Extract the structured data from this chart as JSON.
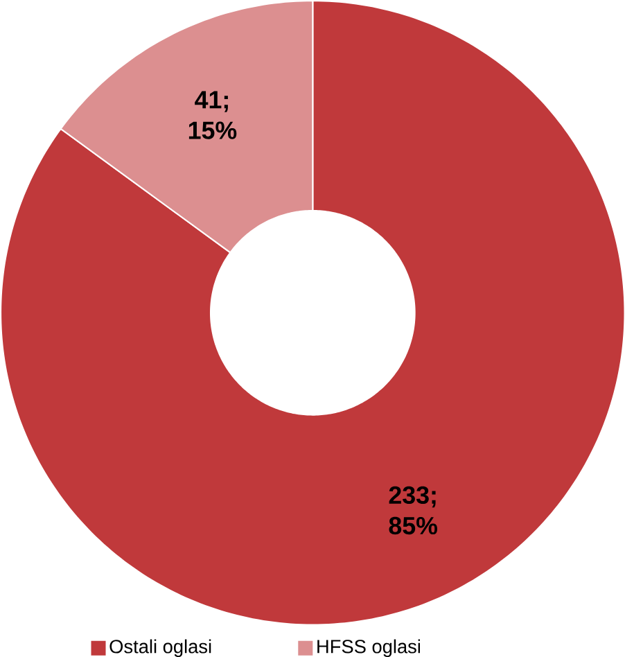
{
  "chart_data": {
    "type": "donut",
    "categories": [
      "Ostali oglasi",
      "HFSS oglasi"
    ],
    "values": [
      233,
      41
    ],
    "colors": [
      "#c0393b",
      "#dc8f90"
    ],
    "value_labels": [
      "233; 85%",
      "41; 15%"
    ],
    "legend": "bottom"
  }
}
